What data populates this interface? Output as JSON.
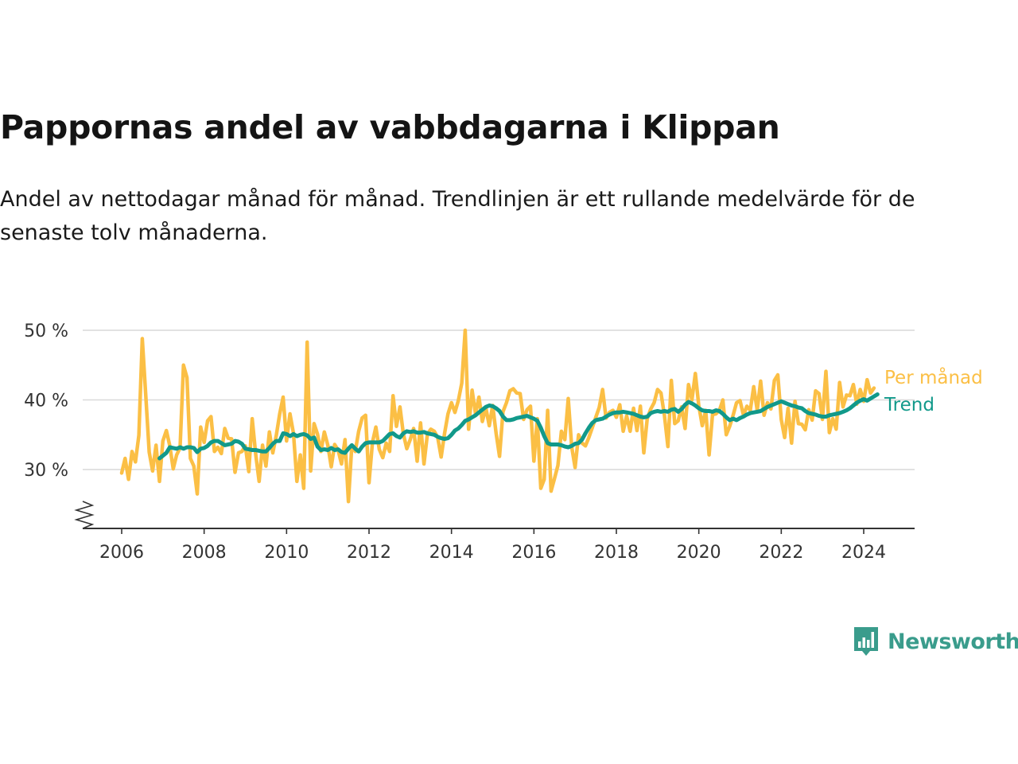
{
  "title": "Pappornas andel av vabbdagarna i Klippan",
  "subtitle": "Andel av nettodagar månad för månad. Trendlinjen är ett rullande medelvärde för de senaste tolv månaderna.",
  "brand": {
    "name": "Newsworthy",
    "color": "#3a9c8c",
    "icon": "bar-chart-speech-bubble-icon"
  },
  "chart_data": {
    "type": "line",
    "y_tick_labels": [
      "30 %",
      "40 %",
      "50 %"
    ],
    "y_ticks": [
      30,
      40,
      50
    ],
    "ylim": [
      21.5,
      52
    ],
    "y_axis_break": true,
    "x_tick_labels": [
      "2006",
      "2008",
      "2010",
      "2012",
      "2014",
      "2016",
      "2018",
      "2020",
      "2022",
      "2024"
    ],
    "x_ticks": [
      2006,
      2008,
      2010,
      2012,
      2014,
      2016,
      2018,
      2020,
      2022,
      2024
    ],
    "xlim": [
      2005.1,
      2025.3
    ],
    "grid": "horizontal",
    "legend": "right-end labels",
    "series": [
      {
        "name": "Per månad",
        "color": "#fbbf45",
        "x_start": 2006.0,
        "x_step": 0.08333,
        "values": [
          29.5,
          31.6,
          28.6,
          32.6,
          31.1,
          34.9,
          48.8,
          40.8,
          32.5,
          29.8,
          33.5,
          28.3,
          34.1,
          35.6,
          33.4,
          30.1,
          32.1,
          33.1,
          45.0,
          43.2,
          31.6,
          30.5,
          26.5,
          36.1,
          33.9,
          37.0,
          37.6,
          32.6,
          33.2,
          32.3,
          35.9,
          34.5,
          34.4,
          29.6,
          32.4,
          32.6,
          33.4,
          29.7,
          37.3,
          32.2,
          28.3,
          33.5,
          30.5,
          35.4,
          32.4,
          34.9,
          38.0,
          40.4,
          34.1,
          38.0,
          35.2,
          28.3,
          32.1,
          27.3,
          48.3,
          29.8,
          36.6,
          35.1,
          32.6,
          35.4,
          33.5,
          30.4,
          33.6,
          32.8,
          30.8,
          34.3,
          25.4,
          33.5,
          32.6,
          35.5,
          37.4,
          37.8,
          28.1,
          33.9,
          36.1,
          32.9,
          31.7,
          33.8,
          32.6,
          40.6,
          36.2,
          39.0,
          35.1,
          33.0,
          34.3,
          35.9,
          31.2,
          36.7,
          30.8,
          35.1,
          35.8,
          35.5,
          34.6,
          31.8,
          35.2,
          38.0,
          39.6,
          38.2,
          39.9,
          42.4,
          50.0,
          35.8,
          41.4,
          38.0,
          40.4,
          36.9,
          38.9,
          36.3,
          39.2,
          35.2,
          31.9,
          38.3,
          39.6,
          41.3,
          41.6,
          41.0,
          40.9,
          37.2,
          38.6,
          39.1,
          31.2,
          37.3,
          27.3,
          28.6,
          38.5,
          26.9,
          28.7,
          30.6,
          35.5,
          34.3,
          40.2,
          33.3,
          30.3,
          35.0,
          33.8,
          33.4,
          34.6,
          36.0,
          37.5,
          38.9,
          41.5,
          37.4,
          38.2,
          38.5,
          37.5,
          39.3,
          35.5,
          37.7,
          35.5,
          38.8,
          35.6,
          39.1,
          32.4,
          37.3,
          38.7,
          39.6,
          41.5,
          41.0,
          37.8,
          33.3,
          42.8,
          36.6,
          37.0,
          39.0,
          35.9,
          42.2,
          40.0,
          43.8,
          39.2,
          36.3,
          38.5,
          32.1,
          37.9,
          38.0,
          38.5,
          40.0,
          35.0,
          36.2,
          37.8,
          39.6,
          39.9,
          37.8,
          39.1,
          38.5,
          41.9,
          38.5,
          42.7,
          37.8,
          39.6,
          38.7,
          42.8,
          43.6,
          37.2,
          34.6,
          38.8,
          33.8,
          39.8,
          36.6,
          36.5,
          35.7,
          38.6,
          37.1,
          41.3,
          40.9,
          37.2,
          44.1,
          35.3,
          37.3,
          35.8,
          42.5,
          39.0,
          40.7,
          40.6,
          42.2,
          39.4,
          41.5,
          39.8,
          42.9,
          41.0,
          41.7
        ]
      },
      {
        "name": "Trend",
        "color": "#11998a",
        "x_start": 2006.917,
        "x_step": 0.08333,
        "values": [
          31.6,
          32.0,
          32.4,
          33.2,
          33.1,
          33.0,
          33.2,
          33.0,
          33.2,
          33.2,
          33.1,
          32.5,
          33.0,
          33.1,
          33.4,
          33.9,
          34.1,
          34.1,
          33.8,
          33.5,
          33.6,
          33.7,
          34.1,
          34.0,
          33.7,
          33.0,
          32.9,
          32.8,
          32.8,
          32.7,
          32.6,
          32.6,
          33.1,
          33.7,
          34.1,
          34.1,
          35.2,
          35.1,
          34.8,
          35.1,
          34.8,
          35.0,
          35.1,
          34.9,
          34.4,
          34.6,
          33.3,
          32.8,
          32.9,
          32.8,
          33.1,
          32.8,
          32.9,
          32.5,
          32.4,
          33.0,
          33.5,
          33.0,
          32.6,
          33.3,
          33.8,
          33.9,
          33.9,
          33.9,
          33.9,
          34.1,
          34.6,
          35.1,
          35.2,
          34.8,
          34.6,
          35.2,
          35.5,
          35.4,
          35.5,
          35.3,
          35.3,
          35.4,
          35.2,
          35.1,
          35.0,
          34.7,
          34.5,
          34.4,
          34.5,
          35.0,
          35.6,
          35.9,
          36.4,
          37.0,
          37.2,
          37.5,
          37.8,
          38.2,
          38.6,
          39.0,
          39.2,
          39.1,
          38.8,
          38.4,
          37.6,
          37.1,
          37.1,
          37.2,
          37.4,
          37.5,
          37.6,
          37.7,
          37.5,
          37.3,
          37.0,
          36.0,
          34.8,
          33.8,
          33.6,
          33.6,
          33.6,
          33.5,
          33.3,
          33.2,
          33.4,
          33.7,
          33.8,
          34.3,
          35.2,
          36.0,
          36.7,
          37.1,
          37.2,
          37.3,
          37.6,
          37.9,
          38.1,
          38.2,
          38.2,
          38.3,
          38.2,
          38.1,
          38.0,
          37.8,
          37.6,
          37.5,
          37.6,
          38.1,
          38.3,
          38.4,
          38.3,
          38.4,
          38.3,
          38.6,
          38.7,
          38.3,
          38.7,
          39.3,
          39.7,
          39.5,
          39.2,
          38.8,
          38.5,
          38.4,
          38.4,
          38.3,
          38.5,
          38.4,
          38.0,
          37.5,
          37.1,
          37.3,
          37.1,
          37.4,
          37.6,
          37.9,
          38.1,
          38.2,
          38.3,
          38.4,
          38.7,
          39.0,
          39.2,
          39.4,
          39.6,
          39.8,
          39.6,
          39.4,
          39.2,
          39.1,
          38.9,
          38.8,
          38.4,
          38.1,
          38.0,
          37.9,
          37.7,
          37.6,
          37.6,
          37.8,
          37.9,
          38.0,
          38.1,
          38.3,
          38.5,
          38.8,
          39.2,
          39.6,
          39.9,
          40.1,
          39.9,
          40.2,
          40.5,
          40.8
        ]
      }
    ]
  }
}
